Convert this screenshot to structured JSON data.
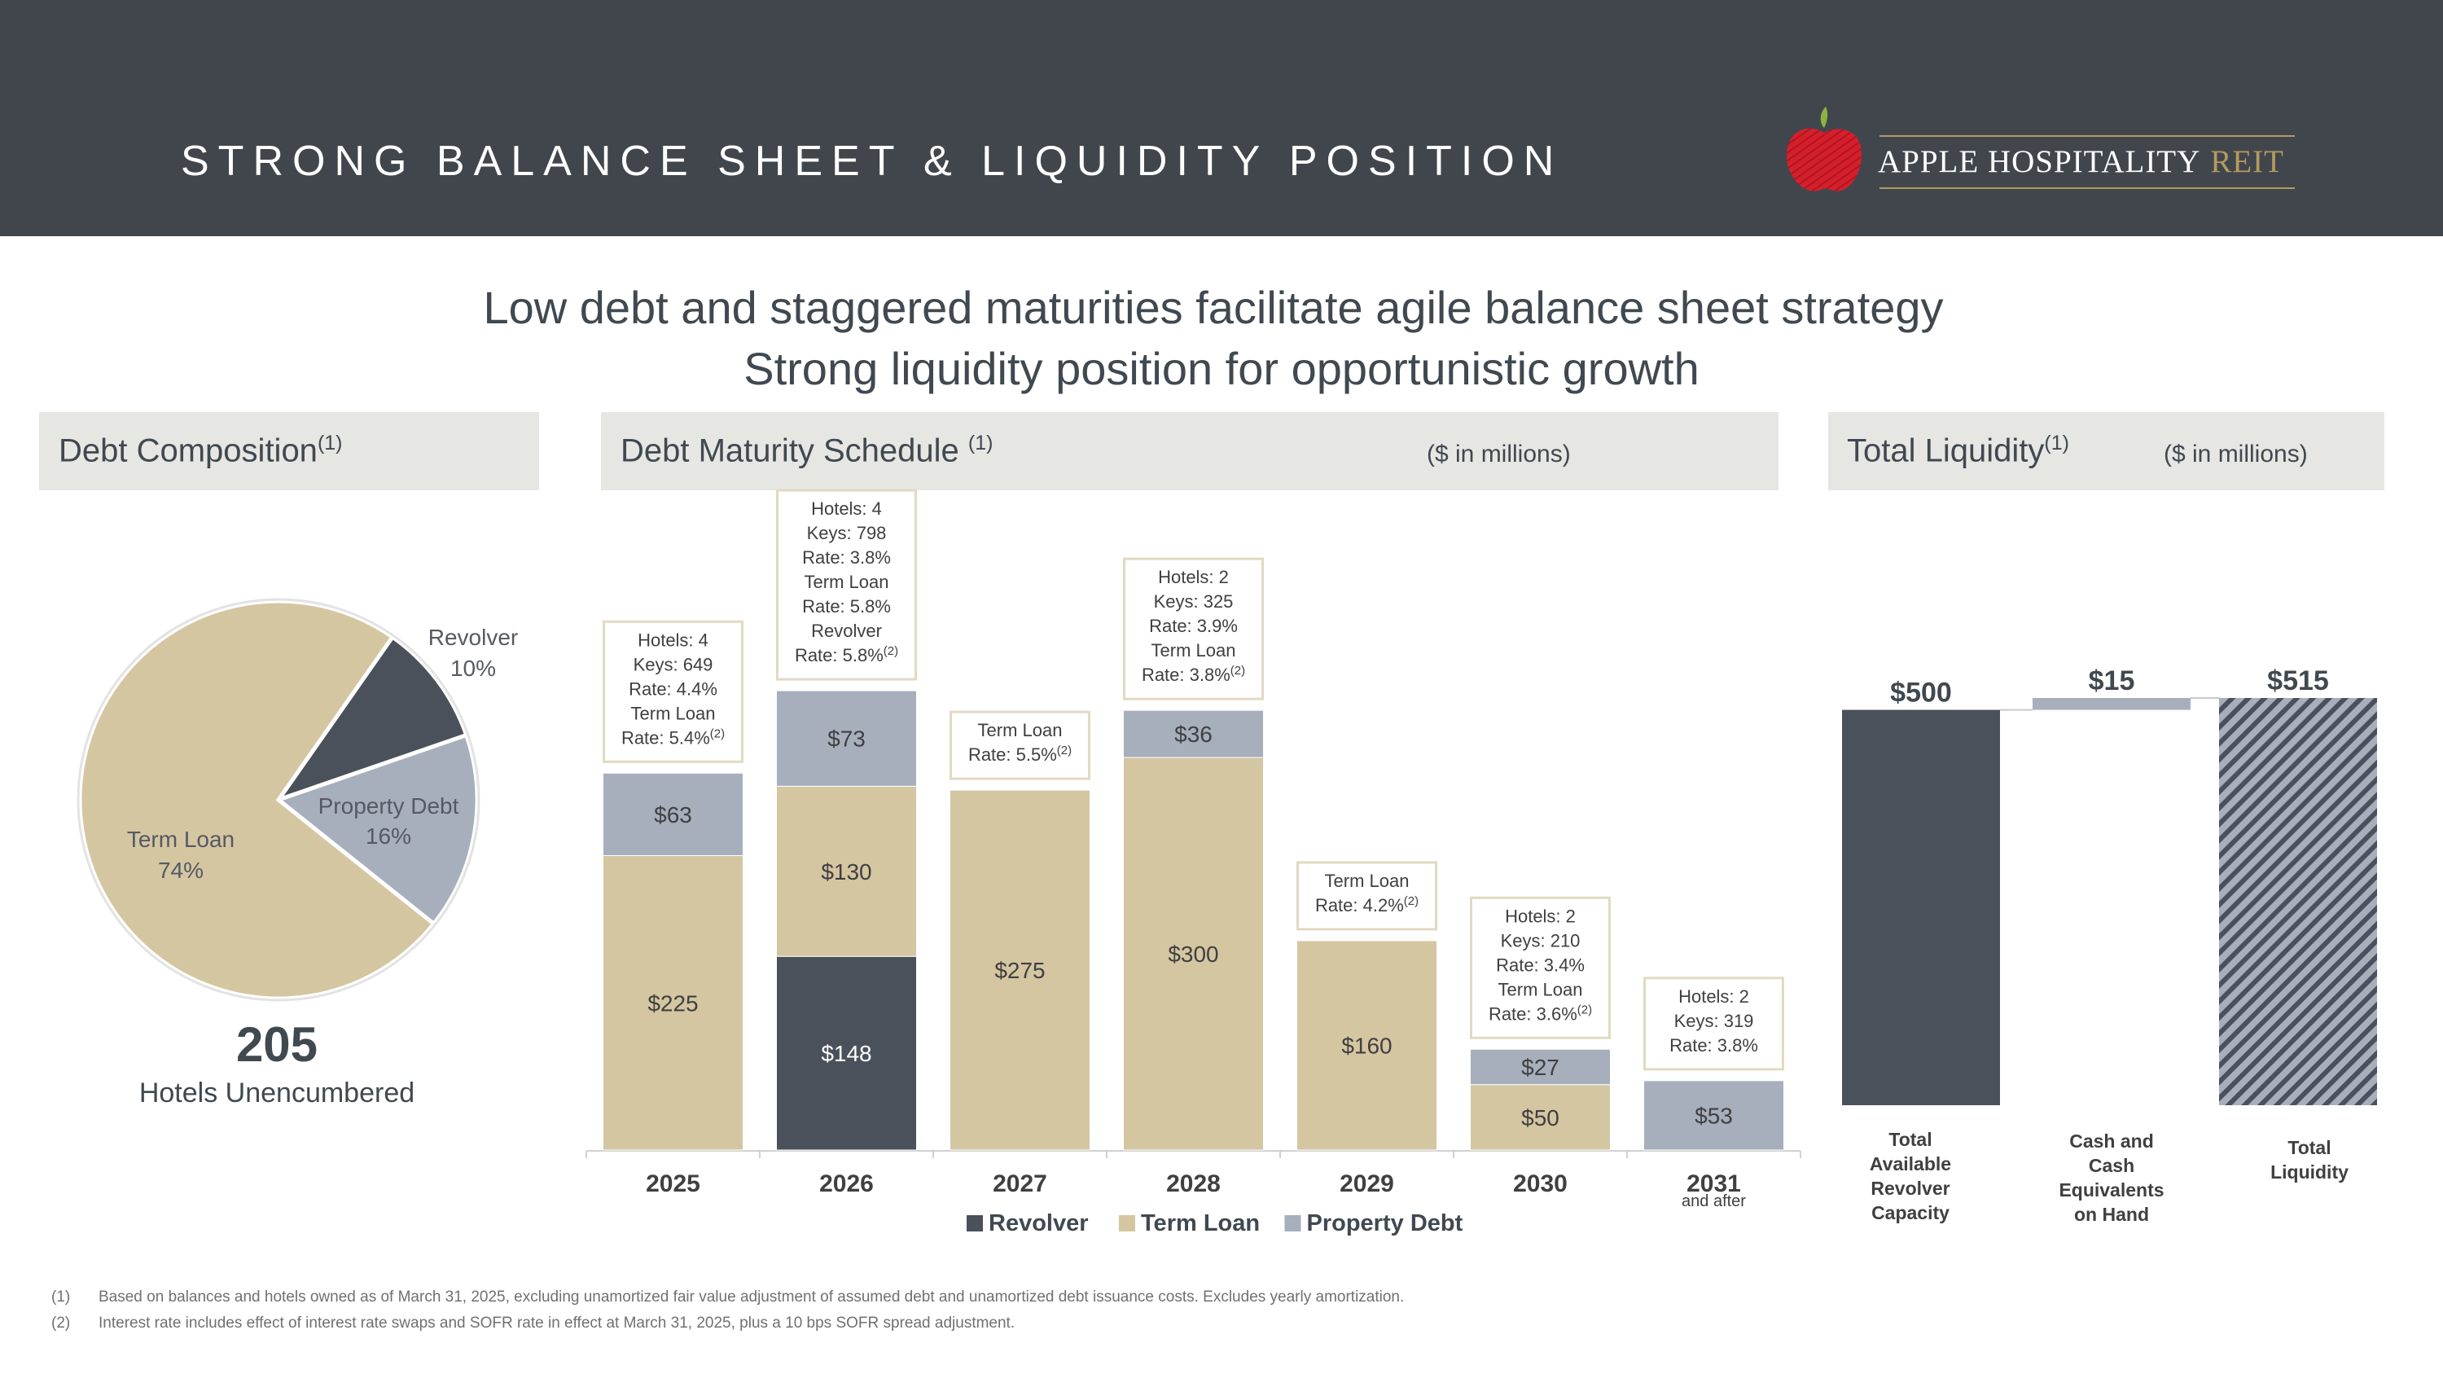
{
  "header": {
    "title": "STRONG BALANCE SHEET & LIQUIDITY POSITION",
    "logo_name": "APPLE HOSPITALITY",
    "logo_suffix": "REIT"
  },
  "subtitles": [
    "Low debt and staggered maturities facilitate agile balance sheet strategy",
    "Strong liquidity position for opportunistic growth"
  ],
  "panels": {
    "composition": {
      "title": "Debt Composition",
      "footnote_ref": "(1)"
    },
    "maturity": {
      "title": "Debt Maturity Schedule ",
      "footnote_ref": "(1)",
      "unit_note": "($ in millions)"
    },
    "liquidity": {
      "title": "Total Liquidity",
      "footnote_ref": "(1)",
      "unit_note": "($ in millions)"
    }
  },
  "stat": {
    "value": "205",
    "label": "Hotels Unencumbered"
  },
  "colors": {
    "revolver": "#4b515b",
    "term_loan": "#d5c6a2",
    "property_debt": "#a7afbd",
    "header_bg": "#41464d",
    "panel_bg": "#e6e6e3",
    "gold": "#b39b5e",
    "apple_red": "#d4202c",
    "apple_leaf": "#8db43e"
  },
  "chart_data": [
    {
      "type": "pie",
      "title": "Debt Composition",
      "slices": [
        {
          "name": "Revolver",
          "value": 10,
          "label": "10%",
          "color": "#4b515b"
        },
        {
          "name": "Property Debt",
          "value": 16,
          "label": "16%",
          "color": "#a7afbd"
        },
        {
          "name": "Term Loan",
          "value": 74,
          "label": "74%",
          "color": "#d5c6a2"
        }
      ]
    },
    {
      "type": "bar",
      "stacked": true,
      "title": "Debt Maturity Schedule",
      "unit": "($ in millions)",
      "categories": [
        "2025",
        "2026",
        "2027",
        "2028",
        "2029",
        "2030",
        "2031"
      ],
      "category_sublabels": [
        "",
        "",
        "",
        "",
        "",
        "",
        "and after"
      ],
      "ylim": [
        0,
        360
      ],
      "series": [
        {
          "name": "Revolver",
          "color": "#4b515b",
          "values": [
            0,
            148,
            0,
            0,
            0,
            0,
            0
          ]
        },
        {
          "name": "Term Loan",
          "color": "#d5c6a2",
          "values": [
            225,
            130,
            275,
            300,
            160,
            50,
            0
          ]
        },
        {
          "name": "Property Debt",
          "color": "#a7afbd",
          "values": [
            63,
            73,
            0,
            36,
            0,
            27,
            53
          ]
        }
      ],
      "legend": [
        "Revolver",
        "Term Loan",
        "Property Debt"
      ],
      "annotations": [
        [
          "Hotels: 4",
          "Keys: 649",
          "Rate: 4.4%",
          "Term Loan",
          "Rate: 5.4%(2)"
        ],
        [
          "Hotels: 4",
          "Keys: 798",
          "Rate: 3.8%",
          "Term Loan",
          "Rate: 5.8%",
          "Revolver",
          "Rate: 5.8%(2)"
        ],
        [
          "Term Loan",
          "Rate: 5.5%(2)"
        ],
        [
          "Hotels: 2",
          "Keys: 325",
          "Rate: 3.9%",
          "Term Loan",
          "Rate: 3.8%(2)"
        ],
        [
          "Term Loan",
          "Rate: 4.2%(2)"
        ],
        [
          "Hotels: 2",
          "Keys: 210",
          "Rate: 3.4%",
          "Term Loan",
          "Rate: 3.6%(2)"
        ],
        [
          "Hotels: 2",
          "Keys: 319",
          "Rate: 3.8%"
        ]
      ]
    },
    {
      "type": "bar",
      "subtype": "waterfall",
      "title": "Total Liquidity",
      "unit": "($ in millions)",
      "categories": [
        "Total Available Revolver Capacity",
        "Cash and Cash Equivalents on Hand",
        "Total Liquidity"
      ],
      "category_lines": [
        [
          "Total",
          "Available",
          "Revolver",
          "Capacity"
        ],
        [
          "Cash and",
          "Cash",
          "Equivalents",
          "on Hand"
        ],
        [
          "Total",
          "Liquidity"
        ]
      ],
      "values": [
        500,
        15,
        515
      ],
      "value_labels": [
        "$500",
        "$15",
        "$515"
      ],
      "colors": [
        "#4b515b",
        "#a7afbd",
        "#a7afbd"
      ],
      "ylim": [
        0,
        515
      ]
    }
  ],
  "footnotes": [
    {
      "num": "(1)",
      "text": "Based on balances and hotels owned as of March 31, 2025, excluding unamortized fair value adjustment of assumed debt and unamortized debt issuance costs. Excludes yearly amortization."
    },
    {
      "num": "(2)",
      "text": "Interest rate includes effect of interest rate swaps and SOFR rate in effect at March 31, 2025, plus a 10 bps SOFR spread adjustment."
    }
  ]
}
